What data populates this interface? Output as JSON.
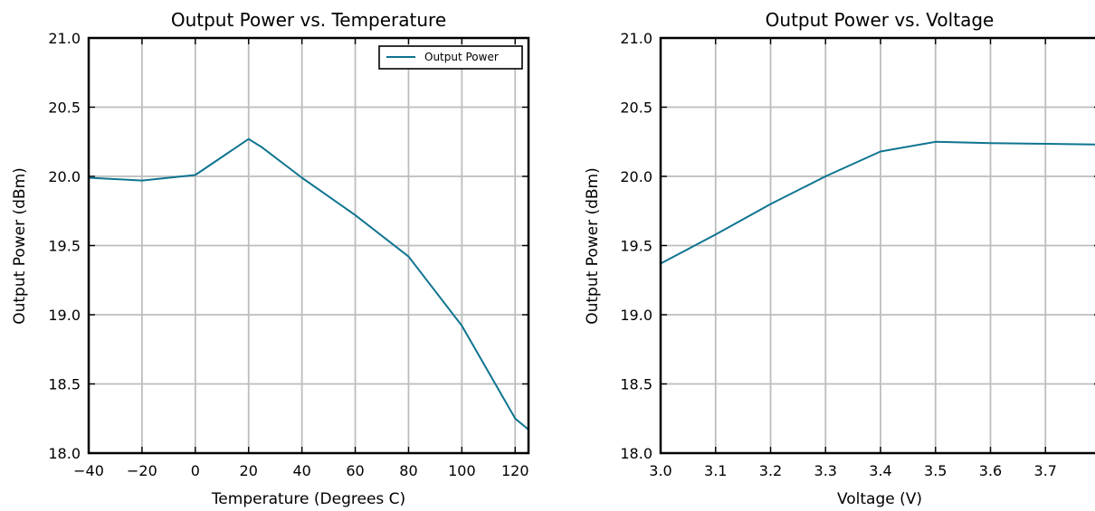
{
  "line_color": "#0f7490",
  "chart_data": [
    {
      "type": "line",
      "title": "Output Power vs. Temperature",
      "xlabel": "Temperature (Degrees C)",
      "ylabel": "Output Power (dBm)",
      "xlim": [
        -40,
        125
      ],
      "ylim": [
        18.0,
        21.0
      ],
      "xticks": [
        -40,
        -20,
        0,
        20,
        40,
        60,
        80,
        100,
        120
      ],
      "xtick_labels": [
        "−40",
        "−20",
        "0",
        "20",
        "40",
        "60",
        "80",
        "100",
        "120"
      ],
      "yticks": [
        18.0,
        18.5,
        19.0,
        19.5,
        20.0,
        20.5,
        21.0
      ],
      "ytick_labels": [
        "18.0",
        "18.5",
        "19.0",
        "19.5",
        "20.0",
        "20.5",
        "21.0"
      ],
      "grid": true,
      "legend": {
        "position": "top-right",
        "entries": [
          "Output Power"
        ]
      },
      "series": [
        {
          "name": "Output Power",
          "x": [
            -40,
            -20,
            0,
            20,
            25,
            40,
            60,
            80,
            100,
            120,
            125
          ],
          "y": [
            19.99,
            19.97,
            20.01,
            20.27,
            20.21,
            19.99,
            19.72,
            19.42,
            18.92,
            18.25,
            18.17
          ]
        }
      ]
    },
    {
      "type": "line",
      "title": "Output Power vs. Voltage",
      "xlabel": "Voltage (V)",
      "ylabel": "Output Power (dBm)",
      "xlim": [
        3.0,
        3.8
      ],
      "ylim": [
        18.0,
        21.0
      ],
      "xticks": [
        3.0,
        3.1,
        3.2,
        3.3,
        3.4,
        3.5,
        3.6,
        3.7
      ],
      "xtick_labels": [
        "3.0",
        "3.1",
        "3.2",
        "3.3",
        "3.4",
        "3.5",
        "3.6",
        "3.7"
      ],
      "yticks": [
        18.0,
        18.5,
        19.0,
        19.5,
        20.0,
        20.5,
        21.0
      ],
      "ytick_labels": [
        "18.0",
        "18.5",
        "19.0",
        "19.5",
        "20.0",
        "20.5",
        "21.0"
      ],
      "grid": true,
      "series": [
        {
          "x": [
            3.0,
            3.1,
            3.2,
            3.3,
            3.4,
            3.5,
            3.6,
            3.7,
            3.8
          ],
          "y": [
            19.37,
            19.58,
            19.8,
            20.0,
            20.18,
            20.25,
            20.24,
            20.235,
            20.23
          ]
        }
      ]
    }
  ]
}
